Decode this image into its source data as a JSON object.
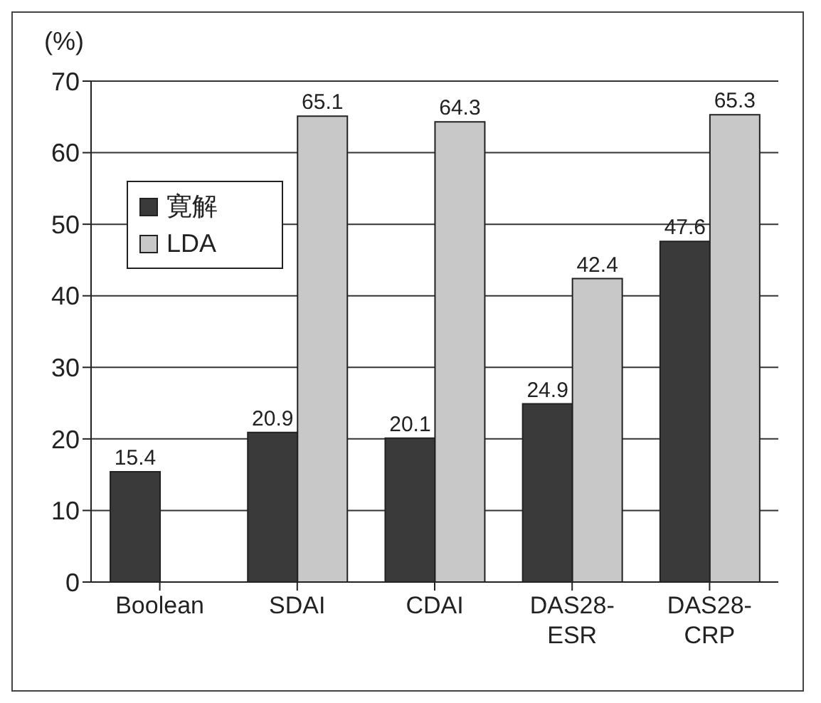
{
  "chart_data": {
    "type": "bar",
    "ylabel": "(%)",
    "categories": [
      "Boolean",
      "SDAI",
      "CDAI",
      "DAS28-ESR",
      "DAS28-CRP"
    ],
    "series": [
      {
        "name": "寛解",
        "color": "#3a3a3a",
        "values": [
          15.4,
          20.9,
          20.1,
          24.9,
          47.6
        ]
      },
      {
        "name": "LDA",
        "color": "#c8c8c8",
        "values": [
          null,
          65.1,
          64.3,
          42.4,
          65.3
        ]
      }
    ],
    "ylim": [
      0,
      70
    ],
    "yticks": [
      0,
      10,
      20,
      30,
      40,
      50,
      60,
      70
    ],
    "grid": "y",
    "legend": "top left",
    "data_labels": true
  }
}
